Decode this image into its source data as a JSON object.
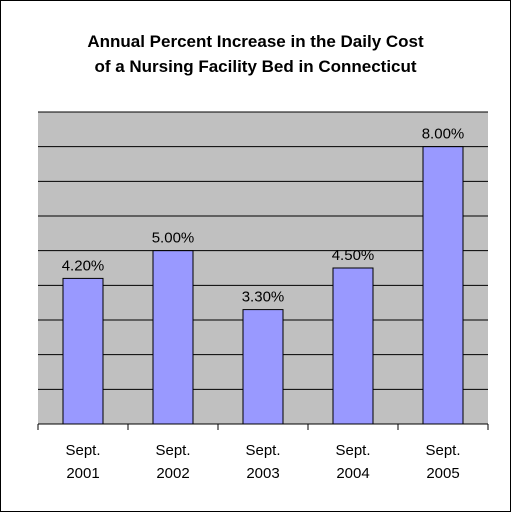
{
  "chart_data": {
    "type": "bar",
    "title": [
      "Annual Percent Increase in the Daily Cost",
      "of a Nursing Facility Bed in Connecticut"
    ],
    "categories": [
      [
        "Sept.",
        "2001"
      ],
      [
        "Sept.",
        "2002"
      ],
      [
        "Sept.",
        "2003"
      ],
      [
        "Sept.",
        "2004"
      ],
      [
        "Sept.",
        "2005"
      ]
    ],
    "values": [
      4.2,
      5.0,
      3.3,
      4.5,
      8.0
    ],
    "data_labels": [
      "4.20%",
      "5.00%",
      "3.30%",
      "4.50%",
      "8.00%"
    ],
    "ylim": [
      0,
      9
    ],
    "gridlines": true,
    "y_axis_visible": false,
    "colors": {
      "plot_bg": "#c0c0c0",
      "bar_fill": "#9999ff",
      "bar_stroke": "#000000",
      "gridline": "#000000"
    }
  }
}
